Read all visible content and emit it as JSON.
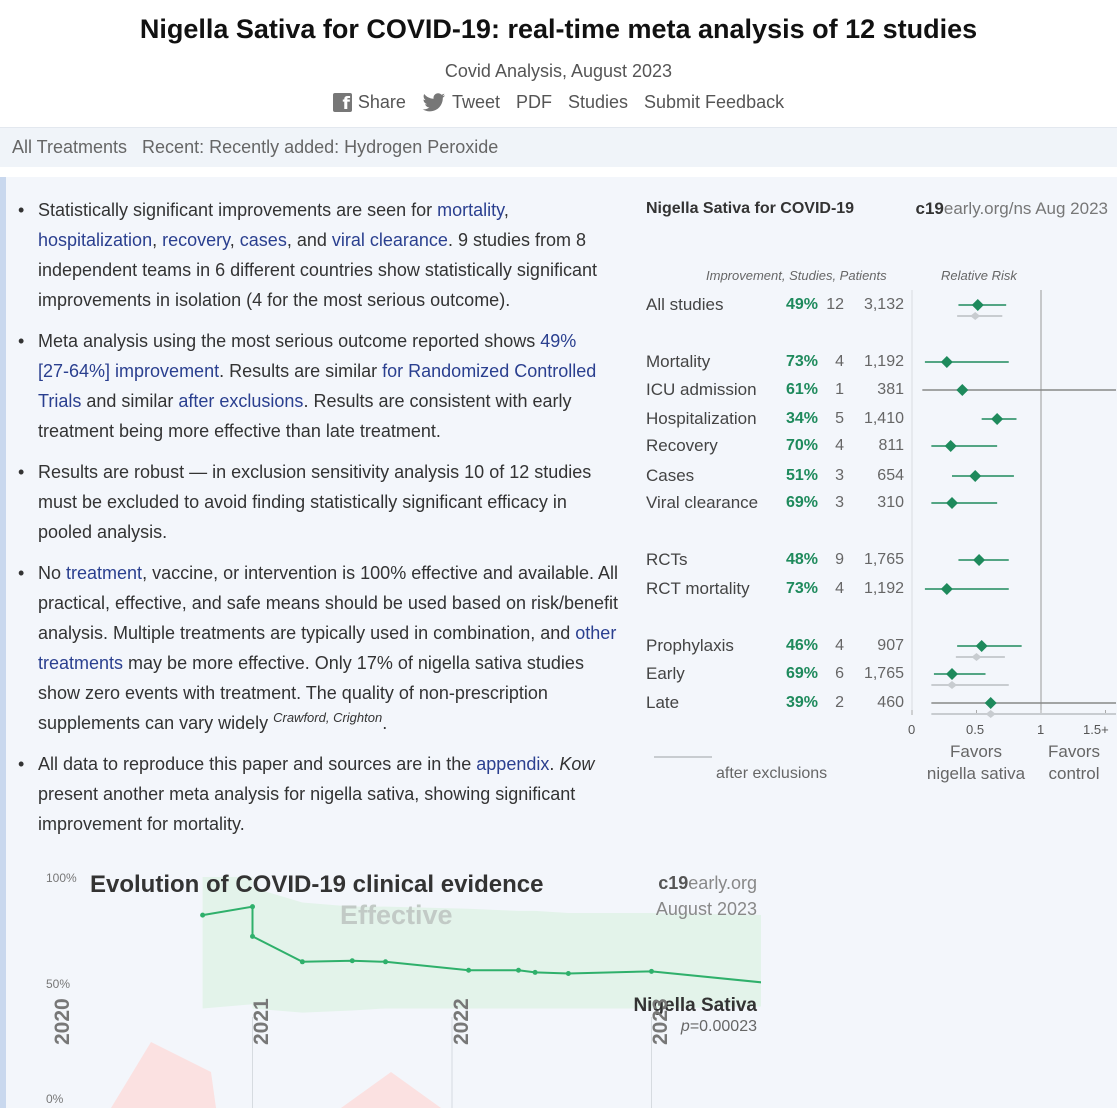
{
  "header": {
    "title": "Nigella Sativa for COVID-19: real-time meta analysis of 12 studies",
    "subtitle": "Covid Analysis, August 2023",
    "links": {
      "share": "Share",
      "tweet": "Tweet",
      "pdf": "PDF",
      "studies": "Studies",
      "feedback": "Submit Feedback"
    }
  },
  "nav": {
    "all": "All Treatments",
    "recent": "Recent: Recently added: Hydrogen Peroxide"
  },
  "bullets": {
    "b1": {
      "t1": "Statistically significant improvements are seen for ",
      "l_mortality": "mortality",
      "c1": ", ",
      "l_hosp": "hospitalization",
      "c2": ", ",
      "l_recovery": "recovery",
      "c3": ", ",
      "l_cases": "cases",
      "c4": ", and ",
      "l_viral": "viral clearance",
      "t2": ". 9 studies from 8 independent teams in 6 different countries show statistically significant improvements in isolation (4 for the most serious outcome)."
    },
    "b2": {
      "t1": "Meta analysis using the most serious outcome reported shows ",
      "l_improve": "49% [27‑64%] improvement",
      "t2": ". Results are similar ",
      "l_rct": "for Randomized Controlled Trials",
      "t3": " and similar ",
      "l_excl": "after exclusions",
      "t4": ". Results are consistent with early treatment being more effective than late treatment."
    },
    "b3": {
      "t1": "Results are robust — in exclusion sensitivity analysis 10 of 12 studies must be excluded to avoid finding statistically significant efficacy in pooled analysis."
    },
    "b4": {
      "t1": "No ",
      "l_treat": "treatment",
      "t2": ", vaccine, or intervention is 100% effective and available. All practical, effective, and safe means should be used based on risk/benefit analysis. Multiple treatments are typically used in combination, and ",
      "l_other": "other treatments",
      "t3": " may be more effective. Only 17% of nigella sativa studies show zero events with treatment. The quality of non-prescription supplements can vary widely ",
      "cite": "Crawford, Crighton",
      "t4": "."
    },
    "b5": {
      "t1": "All data to reproduce this paper and sources are in the ",
      "l_appendix": "appendix",
      "t2": ". ",
      "kow": "Kow",
      "t3": " present another meta analysis for nigella sativa, showing significant improvement for mortality."
    }
  },
  "forest": {
    "title": "Nigella Sativa for COVID-19",
    "site_bold": "c19",
    "site_rest": "early.org/ns Aug 2023",
    "col_head_left": "Improvement, Studies, Patients",
    "col_head_right": "Relative Risk",
    "rows": [
      {
        "label": "All studies",
        "pct": "49%",
        "n": "12",
        "patients": "3,132"
      },
      {
        "label": "Mortality",
        "pct": "73%",
        "n": "4",
        "patients": "1,192"
      },
      {
        "label": "ICU admission",
        "pct": "61%",
        "n": "1",
        "patients": "381"
      },
      {
        "label": "Hospitalization",
        "pct": "34%",
        "n": "5",
        "patients": "1,410"
      },
      {
        "label": "Recovery",
        "pct": "70%",
        "n": "4",
        "patients": "811"
      },
      {
        "label": "Cases",
        "pct": "51%",
        "n": "3",
        "patients": "654"
      },
      {
        "label": "Viral clearance",
        "pct": "69%",
        "n": "3",
        "patients": "310"
      },
      {
        "label": "RCTs",
        "pct": "48%",
        "n": "9",
        "patients": "1,765"
      },
      {
        "label": "RCT mortality",
        "pct": "73%",
        "n": "4",
        "patients": "1,192"
      },
      {
        "label": "Prophylaxis",
        "pct": "46%",
        "n": "4",
        "patients": "907"
      },
      {
        "label": "Early",
        "pct": "69%",
        "n": "6",
        "patients": "1,765"
      },
      {
        "label": "Late",
        "pct": "39%",
        "n": "2",
        "patients": "460"
      }
    ],
    "axis": {
      "t0": "0",
      "t05": "0.5",
      "t1": "1",
      "t15": "1.5+"
    },
    "favors_left_1": "Favors",
    "favors_left_2": "nigella sativa",
    "favors_right_1": "Favors",
    "favors_right_2": "control",
    "legend": "after exclusions",
    "colors": {
      "point": "#1e8a5c",
      "excluded": "#c8ccd0",
      "axis": "#999999"
    }
  },
  "chart_data": {
    "type": "forest",
    "x_scale": "relative risk",
    "xlim": [
      0,
      1.5
    ],
    "rows": [
      {
        "label": "All studies",
        "rr": 0.51,
        "lo": 0.36,
        "hi": 0.73,
        "excl_rr": 0.49,
        "excl_lo": 0.35,
        "excl_hi": 0.7
      },
      {
        "label": "Mortality",
        "rr": 0.27,
        "lo": 0.1,
        "hi": 0.75
      },
      {
        "label": "ICU admission",
        "rr": 0.39,
        "lo": 0.08,
        "hi": 1.6
      },
      {
        "label": "Hospitalization",
        "rr": 0.66,
        "lo": 0.54,
        "hi": 0.81
      },
      {
        "label": "Recovery",
        "rr": 0.3,
        "lo": 0.15,
        "hi": 0.66
      },
      {
        "label": "Cases",
        "rr": 0.49,
        "lo": 0.31,
        "hi": 0.79
      },
      {
        "label": "Viral clearance",
        "rr": 0.31,
        "lo": 0.15,
        "hi": 0.66
      },
      {
        "label": "RCTs",
        "rr": 0.52,
        "lo": 0.36,
        "hi": 0.75
      },
      {
        "label": "RCT mortality",
        "rr": 0.27,
        "lo": 0.1,
        "hi": 0.75
      },
      {
        "label": "Prophylaxis",
        "rr": 0.54,
        "lo": 0.35,
        "hi": 0.85,
        "excl_rr": 0.5,
        "excl_lo": 0.34,
        "excl_hi": 0.72
      },
      {
        "label": "Early",
        "rr": 0.31,
        "lo": 0.17,
        "hi": 0.57,
        "excl_rr": 0.31,
        "excl_lo": 0.15,
        "excl_hi": 0.75
      },
      {
        "label": "Late",
        "rr": 0.61,
        "lo": 0.15,
        "hi": 1.6,
        "excl_rr": 0.61,
        "excl_lo": 0.15,
        "excl_hi": 1.6
      }
    ]
  },
  "evolution": {
    "title": "Evolution of COVID-19 clinical evidence",
    "effective": "Effective",
    "site_bold": "c19",
    "site_rest": "early.org",
    "date": "August 2023",
    "y_top": "100%",
    "y_mid": "50%",
    "y_bottom": "0%",
    "series_name": "Nigella Sativa",
    "p_prefix": "p",
    "p_value": "=0.00023",
    "years": [
      "2020",
      "2021",
      "2022",
      "2023"
    ],
    "data": {
      "x_dates": [
        "2020-10",
        "2021-01",
        "2021-01",
        "2021-04",
        "2021-07",
        "2021-09",
        "2022-02",
        "2022-05",
        "2022-06",
        "2022-08",
        "2023-01",
        "2023-08"
      ],
      "improvement_pct": [
        82,
        86,
        72,
        60,
        60.5,
        60,
        56,
        56,
        55,
        54.5,
        55.5,
        50
      ]
    }
  }
}
